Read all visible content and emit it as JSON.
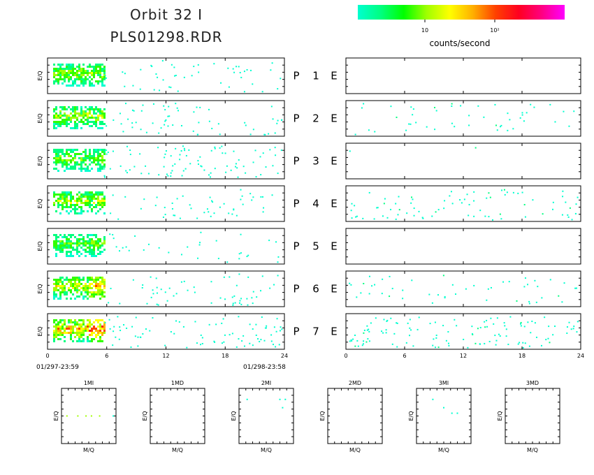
{
  "header": {
    "title_line1": "Orbit  32  I",
    "title_line2": "PLS01298.RDR"
  },
  "colorbar": {
    "label": "counts/second",
    "tick_labels": [
      "10",
      "10²"
    ],
    "gradient": [
      "#00ffd0",
      "#00ff80",
      "#00ff00",
      "#a0ff00",
      "#ffff00",
      "#ffb000",
      "#ff4000",
      "#ff0020",
      "#ff0080",
      "#ff00ff"
    ]
  },
  "time_labels": {
    "start": "01/297-23:59",
    "end": "01/298-23:58"
  },
  "chart_data": [
    {
      "type": "heatmap",
      "title": "",
      "x": {
        "range": [
          0,
          24
        ],
        "ticks": [
          0,
          6,
          12,
          18,
          24
        ]
      },
      "ylabel": "E/Q",
      "rows": [
        {
          "label_p": "P",
          "label_num": "1",
          "label_e": "E",
          "left_level": 0.55,
          "left_scatter": 0.12,
          "right_scatter": 0.0
        },
        {
          "label_p": "P",
          "label_num": "2",
          "label_e": "E",
          "left_level": 0.6,
          "left_scatter": 0.15,
          "right_scatter": 0.12
        },
        {
          "label_p": "P",
          "label_num": "3",
          "label_e": "E",
          "left_level": 0.5,
          "left_scatter": 0.22,
          "right_scatter": 0.005
        },
        {
          "label_p": "P",
          "label_num": "4",
          "label_e": "E",
          "left_level": 0.6,
          "left_scatter": 0.12,
          "right_scatter": 0.2
        },
        {
          "label_p": "P",
          "label_num": "5",
          "label_e": "E",
          "left_level": 0.45,
          "left_scatter": 0.08,
          "right_scatter": 0.0
        },
        {
          "label_p": "P",
          "label_num": "6",
          "label_e": "E",
          "left_level": 0.7,
          "left_scatter": 0.14,
          "right_scatter": 0.12
        },
        {
          "label_p": "P",
          "label_num": "7",
          "label_e": "E",
          "left_level": 0.9,
          "left_scatter": 0.2,
          "right_scatter": 0.3
        }
      ]
    },
    {
      "type": "heatmap",
      "title": "",
      "panels": [
        {
          "title": "1MI",
          "xlabel": "M/Q",
          "ylabel": "E/Q",
          "points": [
            [
              10,
              50
            ],
            [
              30,
              50
            ],
            [
              45,
              50
            ],
            [
              55,
              50
            ],
            [
              70,
              50
            ],
            [
              95,
              50
            ]
          ]
        },
        {
          "title": "1MD",
          "xlabel": "M/Q",
          "ylabel": "E/Q",
          "points": []
        },
        {
          "title": "2MI",
          "xlabel": "M/Q",
          "ylabel": "E/Q",
          "points": [
            [
              15,
              20
            ],
            [
              75,
              20
            ],
            [
              85,
              20
            ],
            [
              80,
              35
            ]
          ]
        },
        {
          "title": "2MD",
          "xlabel": "M/Q",
          "ylabel": "E/Q",
          "points": []
        },
        {
          "title": "3MI",
          "xlabel": "M/Q",
          "ylabel": "E/Q",
          "points": [
            [
              30,
              20
            ],
            [
              50,
              35
            ],
            [
              65,
              45
            ],
            [
              75,
              45
            ]
          ]
        },
        {
          "title": "3MD",
          "xlabel": "M/Q",
          "ylabel": "E/Q",
          "points": []
        }
      ]
    }
  ]
}
